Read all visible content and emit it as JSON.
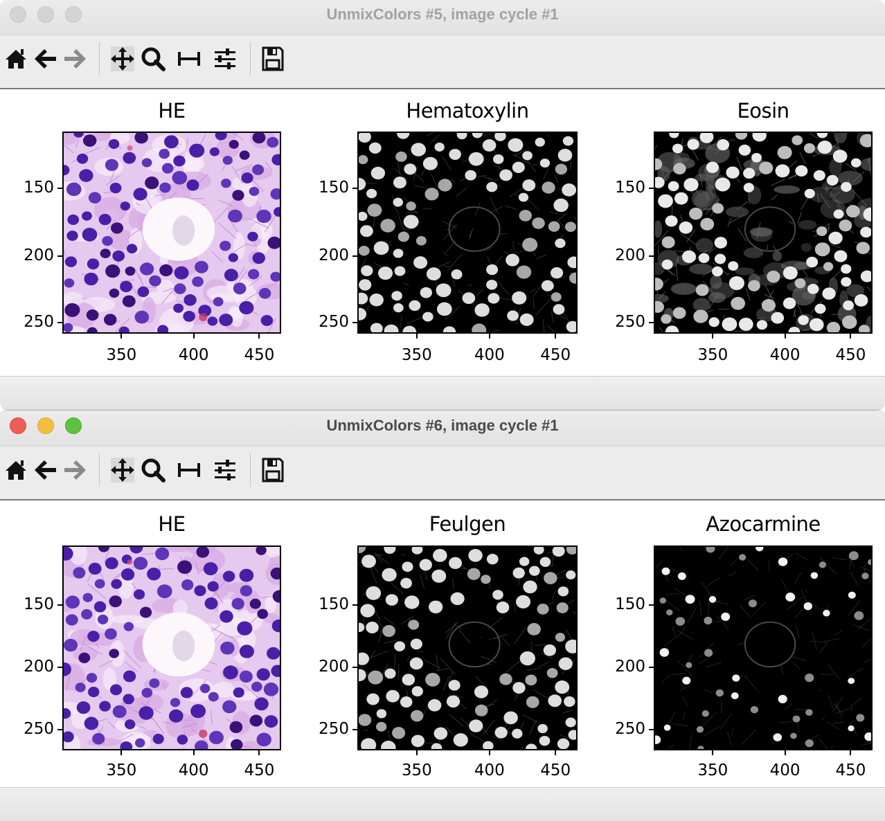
{
  "windows": [
    {
      "title": "UnmixColors #5, image cycle #1",
      "active": false,
      "panels": [
        {
          "title": "HE",
          "kind": "he"
        },
        {
          "title": "Hematoxylin",
          "kind": "gray-nuclei"
        },
        {
          "title": "Eosin",
          "kind": "gray-mixed"
        }
      ]
    },
    {
      "title": "UnmixColors #6, image cycle #1",
      "active": true,
      "panels": [
        {
          "title": "HE",
          "kind": "he"
        },
        {
          "title": "Feulgen",
          "kind": "gray-nuclei"
        },
        {
          "title": "Azocarmine",
          "kind": "gray-sparse"
        }
      ]
    }
  ],
  "toolbar": [
    "home-icon",
    "back-arrow-icon",
    "forward-arrow-icon",
    "pan-icon",
    "zoom-icon",
    "subplots-icon",
    "configure-icon",
    "save-icon"
  ],
  "axes": {
    "y_ticks": [
      "150",
      "200",
      "250"
    ],
    "x_ticks": [
      "350",
      "400",
      "450"
    ]
  },
  "colors": {
    "he_background": "#e6c9ee",
    "he_nucleus": "#4a1fa8",
    "traffic_red": "#ee5d57",
    "traffic_yellow": "#f4bd3e",
    "traffic_green": "#5dc242"
  }
}
